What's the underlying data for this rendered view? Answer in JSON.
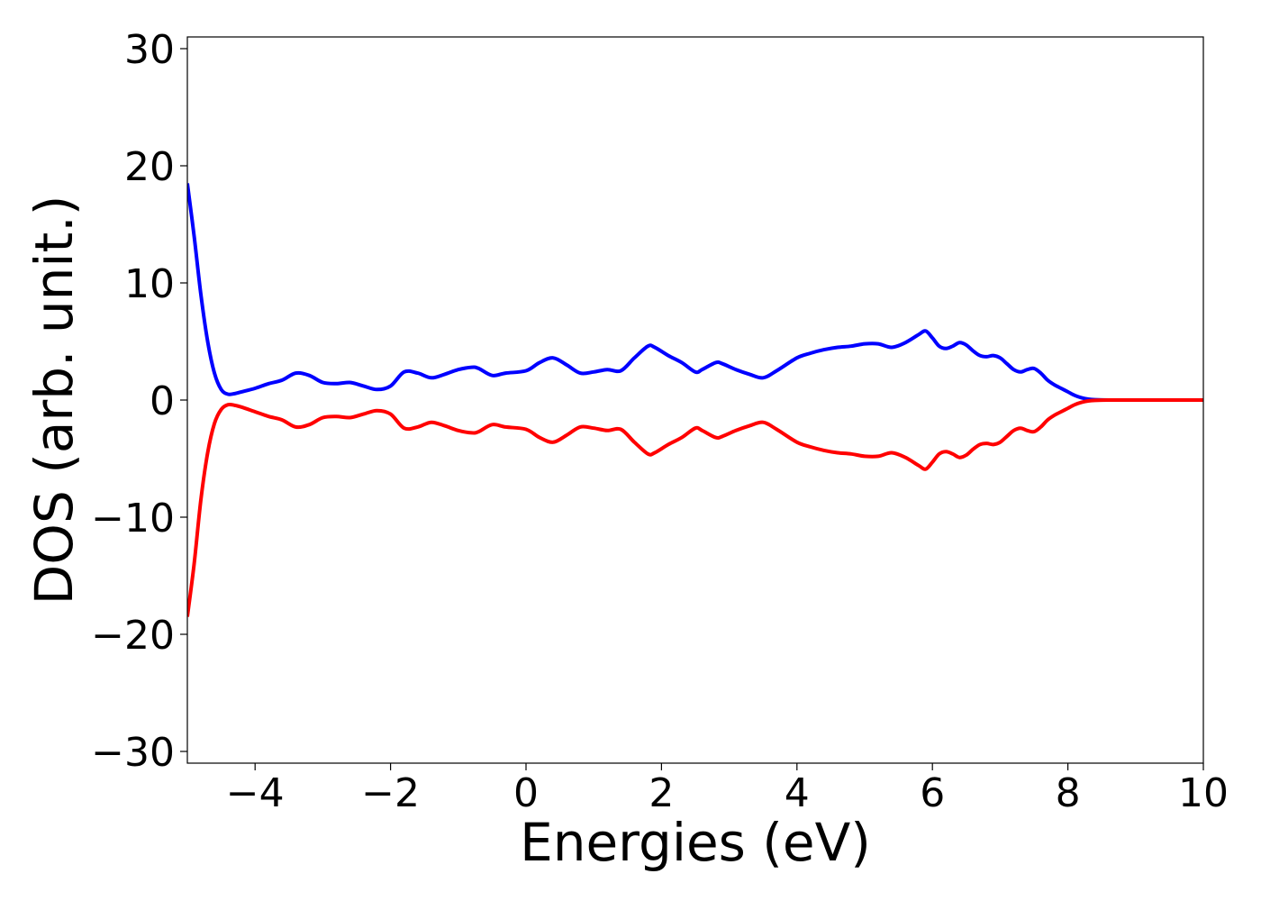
{
  "chart_data": {
    "type": "line",
    "title": "",
    "xlabel": "Energies (eV)",
    "ylabel": "DOS (arb. unit.)",
    "xlim": [
      -5,
      10
    ],
    "ylim": [
      -31,
      31
    ],
    "xticks": [
      -4,
      -2,
      0,
      2,
      4,
      6,
      8,
      10
    ],
    "xtick_labels": [
      "−4",
      "−2",
      "0",
      "2",
      "4",
      "6",
      "8",
      "10"
    ],
    "yticks": [
      -30,
      -20,
      -10,
      0,
      10,
      20,
      30
    ],
    "ytick_labels": [
      "−30",
      "−20",
      "−10",
      "0",
      "10",
      "20",
      "30"
    ],
    "grid": false,
    "legend": false,
    "series": [
      {
        "color": "#0000ff",
        "x": [
          -5.0,
          -4.9,
          -4.8,
          -4.7,
          -4.6,
          -4.5,
          -4.4,
          -4.3,
          -4.2,
          -4.0,
          -3.8,
          -3.6,
          -3.4,
          -3.2,
          -3.0,
          -2.8,
          -2.6,
          -2.4,
          -2.2,
          -2.0,
          -1.8,
          -1.6,
          -1.4,
          -1.2,
          -1.0,
          -0.8,
          -0.7,
          -0.5,
          -0.3,
          0.0,
          0.2,
          0.4,
          0.6,
          0.8,
          1.0,
          1.2,
          1.4,
          1.6,
          1.8,
          1.9,
          2.1,
          2.3,
          2.5,
          2.6,
          2.8,
          2.9,
          3.1,
          3.3,
          3.5,
          3.7,
          4.0,
          4.2,
          4.4,
          4.6,
          4.8,
          5.0,
          5.2,
          5.4,
          5.6,
          5.8,
          5.9,
          6.0,
          6.1,
          6.2,
          6.3,
          6.4,
          6.5,
          6.6,
          6.7,
          6.8,
          6.9,
          7.0,
          7.1,
          7.2,
          7.3,
          7.4,
          7.5,
          7.6,
          7.7,
          7.8,
          7.9,
          8.0,
          8.1,
          8.2,
          8.3,
          8.4,
          8.6,
          9.0,
          9.5,
          10.0
        ],
        "y": [
          18.5,
          14.0,
          9.0,
          5.0,
          2.3,
          0.9,
          0.5,
          0.55,
          0.7,
          1.0,
          1.4,
          1.7,
          2.3,
          2.1,
          1.5,
          1.4,
          1.5,
          1.2,
          0.9,
          1.2,
          2.4,
          2.3,
          1.9,
          2.2,
          2.6,
          2.8,
          2.7,
          2.1,
          2.3,
          2.5,
          3.2,
          3.6,
          3.0,
          2.3,
          2.4,
          2.6,
          2.5,
          3.6,
          4.6,
          4.5,
          3.8,
          3.2,
          2.4,
          2.6,
          3.2,
          3.1,
          2.6,
          2.2,
          1.9,
          2.5,
          3.6,
          4.0,
          4.3,
          4.5,
          4.6,
          4.8,
          4.8,
          4.5,
          4.9,
          5.6,
          5.9,
          5.3,
          4.6,
          4.4,
          4.6,
          4.9,
          4.7,
          4.2,
          3.8,
          3.7,
          3.8,
          3.6,
          3.1,
          2.6,
          2.4,
          2.6,
          2.7,
          2.3,
          1.7,
          1.3,
          1.0,
          0.7,
          0.4,
          0.2,
          0.08,
          0.03,
          0.0,
          0.0,
          0.0,
          0.0
        ]
      },
      {
        "color": "#ff0000",
        "x": [
          -5.0,
          -4.9,
          -4.8,
          -4.7,
          -4.6,
          -4.5,
          -4.4,
          -4.3,
          -4.2,
          -4.0,
          -3.8,
          -3.6,
          -3.4,
          -3.2,
          -3.0,
          -2.8,
          -2.6,
          -2.4,
          -2.2,
          -2.0,
          -1.8,
          -1.6,
          -1.4,
          -1.2,
          -1.0,
          -0.8,
          -0.7,
          -0.5,
          -0.3,
          0.0,
          0.2,
          0.4,
          0.6,
          0.8,
          1.0,
          1.2,
          1.4,
          1.6,
          1.8,
          1.9,
          2.1,
          2.3,
          2.5,
          2.6,
          2.8,
          2.9,
          3.1,
          3.3,
          3.5,
          3.7,
          4.0,
          4.2,
          4.4,
          4.6,
          4.8,
          5.0,
          5.2,
          5.4,
          5.6,
          5.8,
          5.9,
          6.0,
          6.1,
          6.2,
          6.3,
          6.4,
          6.5,
          6.6,
          6.7,
          6.8,
          6.9,
          7.0,
          7.1,
          7.2,
          7.3,
          7.4,
          7.5,
          7.6,
          7.7,
          7.8,
          7.9,
          8.0,
          8.1,
          8.2,
          8.3,
          8.4,
          8.6,
          9.0,
          9.5,
          10.0
        ],
        "y": [
          -18.5,
          -14.0,
          -8.5,
          -4.5,
          -2.0,
          -0.8,
          -0.4,
          -0.45,
          -0.6,
          -1.0,
          -1.4,
          -1.7,
          -2.3,
          -2.1,
          -1.5,
          -1.4,
          -1.5,
          -1.2,
          -0.9,
          -1.2,
          -2.4,
          -2.3,
          -1.9,
          -2.2,
          -2.6,
          -2.8,
          -2.7,
          -2.1,
          -2.3,
          -2.5,
          -3.2,
          -3.6,
          -3.0,
          -2.3,
          -2.4,
          -2.6,
          -2.5,
          -3.6,
          -4.6,
          -4.5,
          -3.8,
          -3.2,
          -2.4,
          -2.6,
          -3.2,
          -3.1,
          -2.6,
          -2.2,
          -1.9,
          -2.5,
          -3.6,
          -4.0,
          -4.3,
          -4.5,
          -4.6,
          -4.8,
          -4.8,
          -4.5,
          -4.9,
          -5.6,
          -5.9,
          -5.3,
          -4.6,
          -4.4,
          -4.6,
          -4.9,
          -4.7,
          -4.2,
          -3.8,
          -3.7,
          -3.8,
          -3.6,
          -3.1,
          -2.6,
          -2.4,
          -2.6,
          -2.7,
          -2.3,
          -1.7,
          -1.3,
          -1.0,
          -0.7,
          -0.4,
          -0.2,
          -0.08,
          -0.03,
          0.0,
          0.0,
          0.0,
          0.0
        ]
      }
    ]
  }
}
